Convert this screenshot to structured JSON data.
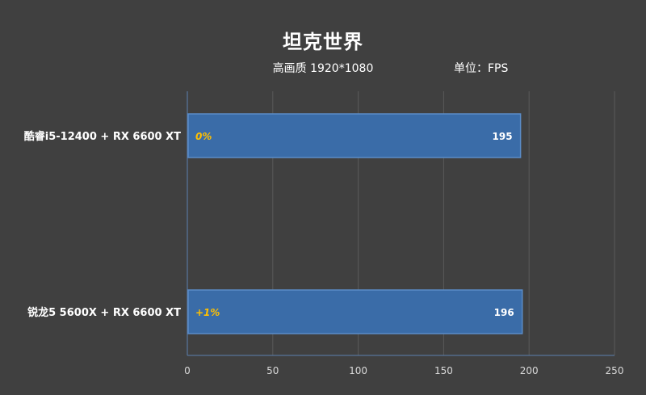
{
  "chart_data": {
    "type": "bar",
    "orientation": "horizontal",
    "title": "坦克世界",
    "subtitle": "高画质 1920*1080",
    "unit_label": "单位：FPS",
    "categories": [
      "酷睿i5-12400 + RX 6600 XT",
      "锐龙5 5600X + RX 6600 XT"
    ],
    "values": [
      195,
      196
    ],
    "percent_labels": [
      "0%",
      "+1%"
    ],
    "xlim": [
      0,
      250
    ],
    "xticks": [
      0,
      50,
      100,
      150,
      200,
      250
    ],
    "grid": true,
    "colors": {
      "background": "#404040",
      "bar": "#3A6CA8",
      "bar_edge": "#5A8CC8",
      "percent": "#FFC000",
      "grid": "#5A5A5A",
      "axis": "#5B7FAF"
    }
  }
}
